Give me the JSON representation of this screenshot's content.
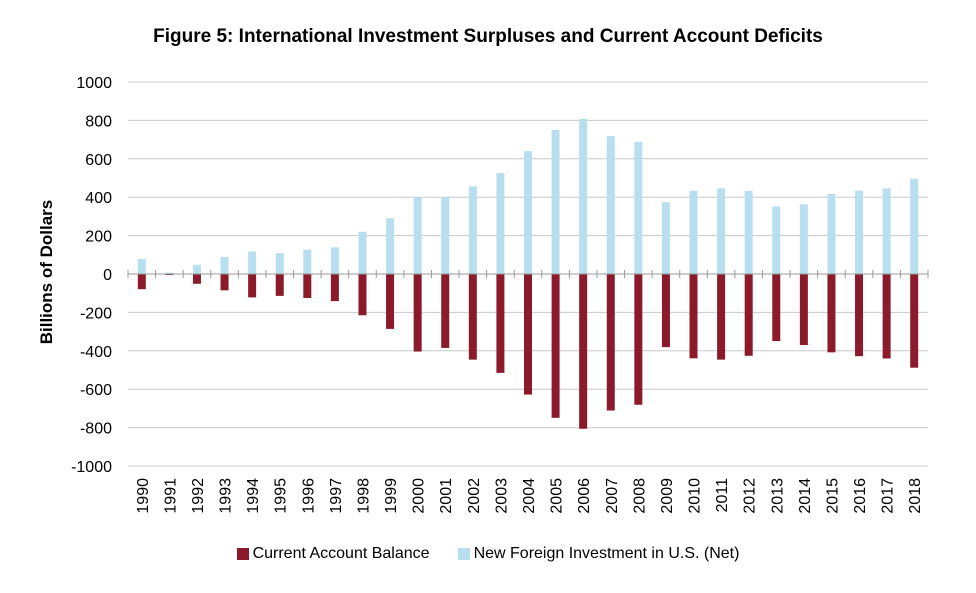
{
  "chart_data": {
    "type": "bar",
    "title": "Figure 5: International Investment Surpluses and Current Account Deficits",
    "ylabel": "Billions of Dollars",
    "xlabel": "",
    "ylim": [
      -1000,
      1000
    ],
    "yticks": [
      -1000,
      -800,
      -600,
      -400,
      -200,
      0,
      200,
      400,
      600,
      800,
      1000
    ],
    "grid": true,
    "legend_position": "bottom",
    "categories": [
      "1990",
      "1991",
      "1992",
      "1993",
      "1994",
      "1995",
      "1996",
      "1997",
      "1998",
      "1999",
      "2000",
      "2001",
      "2002",
      "2003",
      "2004",
      "2005",
      "2006",
      "2007",
      "2008",
      "2009",
      "2010",
      "2011",
      "2012",
      "2013",
      "2014",
      "2015",
      "2016",
      "2017",
      "2018"
    ],
    "series": [
      {
        "name": "Current Account Balance",
        "color": "#8b1a2a",
        "values": [
          -79,
          -3,
          -51,
          -85,
          -122,
          -114,
          -125,
          -141,
          -215,
          -286,
          -404,
          -385,
          -446,
          -515,
          -628,
          -749,
          -806,
          -711,
          -681,
          -381,
          -439,
          -446,
          -426,
          -349,
          -370,
          -408,
          -428,
          -440,
          -488
        ]
      },
      {
        "name": "New Foreign Investment in U.S. (Net)",
        "color": "#b8dff0",
        "values": [
          78,
          7,
          48,
          89,
          117,
          109,
          127,
          139,
          220,
          290,
          400,
          400,
          456,
          526,
          640,
          750,
          808,
          718,
          688,
          374,
          434,
          446,
          433,
          352,
          363,
          417,
          434,
          446,
          496
        ]
      }
    ]
  }
}
